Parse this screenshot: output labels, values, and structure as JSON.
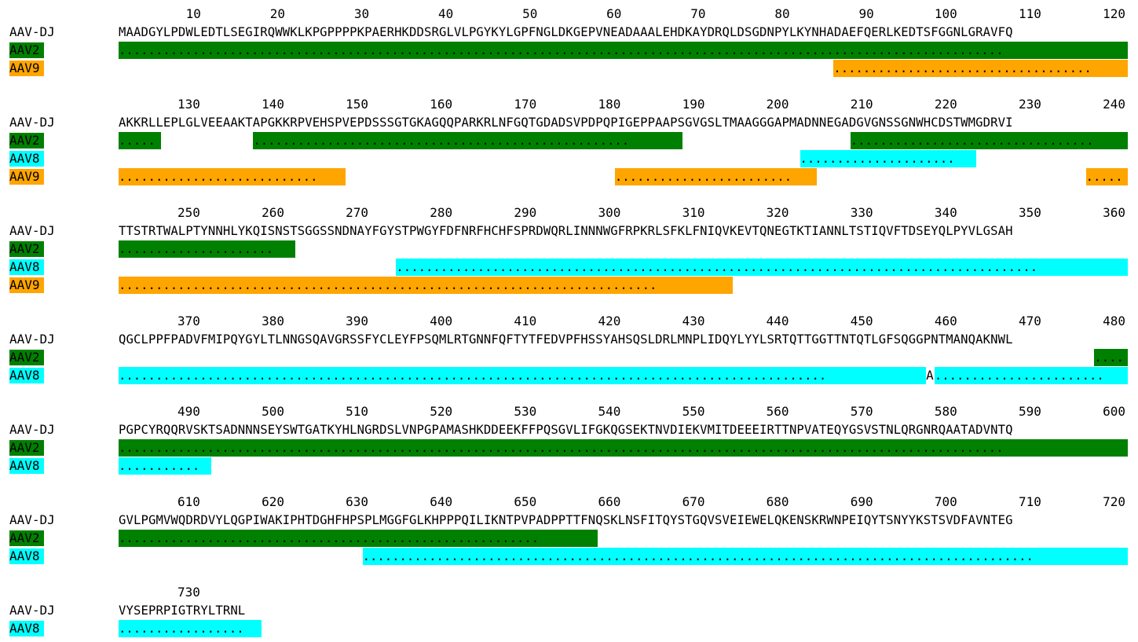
{
  "colors": {
    "AAV2": "#008000",
    "AAV8": "#00ffff",
    "AAV9": "#ffa500"
  },
  "blocks": [
    {
      "ticks": [
        10,
        20,
        30,
        40,
        50,
        60,
        70,
        80,
        90,
        100,
        110,
        120
      ],
      "ref_label": "AAV-DJ",
      "sequence": "MAADGYLPDWLEDTLSEGIRQWWKLKPGPPPPKPAERHKDDSRGLVLPGYKYLGPFNGLDKGEPVNEADAAALEHDKAYDRQLDSGDNPYLKYNHADAEFQERLKEDTSFGGNLGRAVFQ",
      "rows": [
        {
          "name": "AAV2",
          "segments": [
            {
              "start": 1,
              "end": 120
            }
          ]
        },
        {
          "name": "AAV9",
          "segments": [
            {
              "start": 86,
              "end": 120
            }
          ]
        }
      ]
    },
    {
      "ticks": [
        130,
        140,
        150,
        160,
        170,
        180,
        190,
        200,
        210,
        220,
        230,
        240
      ],
      "ref_label": "AAV-DJ",
      "sequence": "AKKRLLEPLGLVEEAAKTAPGKKRPVEHSPVEPDSSSGTGKAGQQPARKRLNFGQTGDADSVPDPQPIGEPPAAPSGVGSLTMAAGGGAPMADNNEGADGVGNSSGNWHCDSTWMGDRVI",
      "rows": [
        {
          "name": "AAV2",
          "segments": [
            {
              "start": 121,
              "end": 125
            },
            {
              "start": 137,
              "end": 187
            },
            {
              "start": 208,
              "end": 240
            }
          ]
        },
        {
          "name": "AAV8",
          "segments": [
            {
              "start": 202,
              "end": 222
            }
          ]
        },
        {
          "name": "AAV9",
          "segments": [
            {
              "start": 121,
              "end": 147
            },
            {
              "start": 180,
              "end": 203
            },
            {
              "start": 236,
              "end": 240
            }
          ]
        }
      ]
    },
    {
      "ticks": [
        250,
        260,
        270,
        280,
        290,
        300,
        310,
        320,
        330,
        340,
        350,
        360
      ],
      "ref_label": "AAV-DJ",
      "sequence": "TTSTRTWALPTYNNHLYKQISNSTSGGSSNDNAYFGYSTPWGYFDFNRFHCHFSPRDWQRLINNNWGFRPKRLSFKLFNIQVKEVTQNEGTKTIANNLTSTIQVFTDSEYQLPYVLGSAH",
      "rows": [
        {
          "name": "AAV2",
          "segments": [
            {
              "start": 241,
              "end": 261
            }
          ]
        },
        {
          "name": "AAV8",
          "segments": [
            {
              "start": 274,
              "end": 360
            }
          ]
        },
        {
          "name": "AAV9",
          "segments": [
            {
              "start": 241,
              "end": 313
            }
          ]
        }
      ]
    },
    {
      "ticks": [
        370,
        380,
        390,
        400,
        410,
        420,
        430,
        440,
        450,
        460,
        470,
        480
      ],
      "ref_label": "AAV-DJ",
      "sequence": "QGCLPPFPADVFMIPQYGYLTLNNGSQAVGRSSFYCLEYFPSQMLRTGNNFQFTYTFEDVPFHSSYAHSQSLDRLMNPLIDQYLYYLSRTQTTGGTTNTQTLGFSQGGPNTMANQAKNWL",
      "rows": [
        {
          "name": "AAV2",
          "segments": [
            {
              "start": 477,
              "end": 480
            }
          ]
        },
        {
          "name": "AAV8",
          "segments": [
            {
              "start": 361,
              "end": 456
            },
            {
              "start": 458,
              "end": 480
            }
          ],
          "mutations": [
            {
              "pos": 457,
              "residue": "A"
            }
          ]
        }
      ]
    },
    {
      "ticks": [
        490,
        500,
        510,
        520,
        530,
        540,
        550,
        560,
        570,
        580,
        590,
        600
      ],
      "ref_label": "AAV-DJ",
      "sequence": "PGPCYRQQRVSKTSADNNNSEYSWTGATKYHLNGRDSLVNPGPAMASHKDDEEKFFPQSGVLIFGKQGSEKTNVDIEKVMITDEEEIRTTNPVATEQYGSVSTNLQRGNRQAATADVNTQ",
      "rows": [
        {
          "name": "AAV2",
          "segments": [
            {
              "start": 481,
              "end": 600
            }
          ]
        },
        {
          "name": "AAV8",
          "segments": [
            {
              "start": 481,
              "end": 491
            }
          ]
        }
      ]
    },
    {
      "ticks": [
        610,
        620,
        630,
        640,
        650,
        660,
        670,
        680,
        690,
        700,
        710,
        720
      ],
      "ref_label": "AAV-DJ",
      "sequence": "GVLPGMVWQDRDVYLQGPIWAKIPHTDGHFHPSPLMGGFGLKHPPPQILIKNTPVPADPPTTFNQSKLNSFITQYSTGQVSVEIEWELQKENSKRWNPEIQYTSNYYKSTSVDFAVNTEG",
      "rows": [
        {
          "name": "AAV2",
          "segments": [
            {
              "start": 601,
              "end": 657
            }
          ]
        },
        {
          "name": "AAV8",
          "segments": [
            {
              "start": 630,
              "end": 720
            }
          ]
        }
      ]
    },
    {
      "ticks": [
        730
      ],
      "ref_label": "AAV-DJ",
      "sequence": "VYSEPRPIGTRYLTRNL",
      "rows": [
        {
          "name": "AAV8",
          "segments": [
            {
              "start": 721,
              "end": 737
            }
          ]
        }
      ]
    }
  ]
}
